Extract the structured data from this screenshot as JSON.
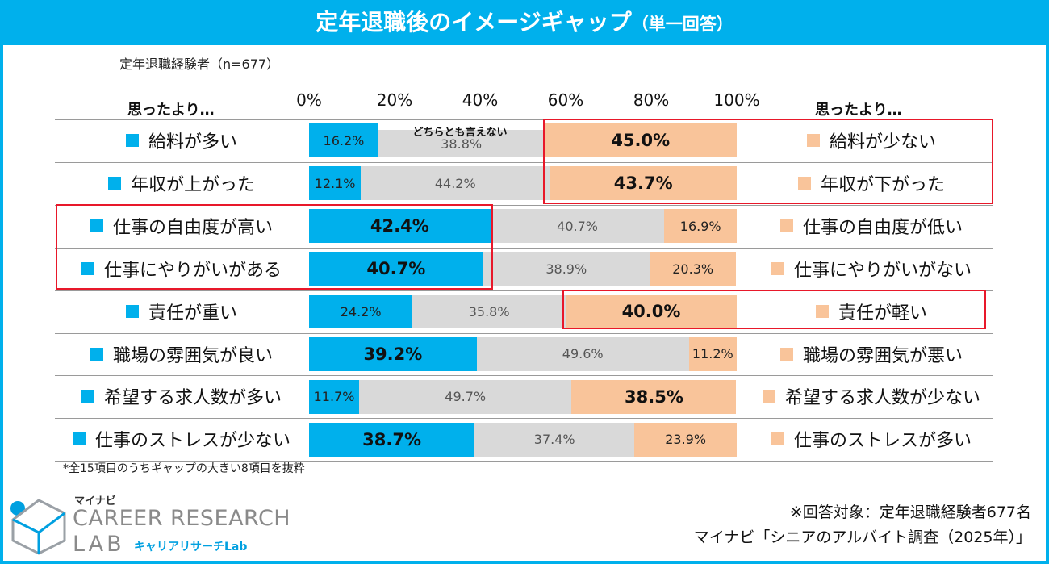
{
  "title": "定年退職後のイメージギャップ",
  "title_suffix": "（単一回答）",
  "sample": "定年退職経験者（n=677）",
  "header_left": "思ったより…",
  "header_right": "思ったより…",
  "neutral_label": "どちらとも言えない",
  "footnote": "*全15項目のうちギャップの大きい8項目を抜粋",
  "logo": {
    "small": "マイナビ",
    "main": "CAREER RESEARCH",
    "lab": "LAB",
    "jp": "キャリアリサーチLab"
  },
  "credit": {
    "line1": "※回答対象：定年退職経験者677名",
    "line2": "マイナビ「シニアのアルバイト調査（2025年）」"
  },
  "colors": {
    "positive": "#00b0ec",
    "neutral": "#d9d9d9",
    "negative": "#f9c49a",
    "highlight": "#e8182a",
    "frame": "#00b0ec"
  },
  "chart_data": {
    "type": "bar",
    "orientation": "horizontal",
    "stacked": true,
    "xlim": [
      0,
      100
    ],
    "x_ticks": [
      "0%",
      "20%",
      "40%",
      "60%",
      "80%",
      "100%"
    ],
    "categories_left": [
      "給料が多い",
      "年収が上がった",
      "仕事の自由度が高い",
      "仕事にやりがいがある",
      "責任が重い",
      "職場の雰囲気が良い",
      "希望する求人数が多い",
      "仕事のストレスが少ない"
    ],
    "categories_right": [
      "給料が少ない",
      "年収が下がった",
      "仕事の自由度が低い",
      "仕事にやりがいがない",
      "責任が軽い",
      "職場の雰囲気が悪い",
      "希望する求人数が少ない",
      "仕事のストレスが多い"
    ],
    "series": [
      {
        "name": "positive",
        "values": [
          16.2,
          12.1,
          42.4,
          40.7,
          24.2,
          39.2,
          11.7,
          38.7
        ]
      },
      {
        "name": "どちらとも言えない",
        "values": [
          38.8,
          44.2,
          40.7,
          38.9,
          35.8,
          49.6,
          49.7,
          37.4
        ]
      },
      {
        "name": "negative",
        "values": [
          45.0,
          43.7,
          16.9,
          20.3,
          40.0,
          11.2,
          38.5,
          23.9
        ]
      }
    ],
    "value_labels": [
      [
        "16.2%",
        "38.8%",
        "45.0%"
      ],
      [
        "12.1%",
        "44.2%",
        "43.7%"
      ],
      [
        "42.4%",
        "40.7%",
        "16.9%"
      ],
      [
        "40.7%",
        "38.9%",
        "20.3%"
      ],
      [
        "24.2%",
        "35.8%",
        "40.0%"
      ],
      [
        "39.2%",
        "49.6%",
        "11.2%"
      ],
      [
        "11.7%",
        "49.7%",
        "38.5%"
      ],
      [
        "38.7%",
        "37.4%",
        "23.9%"
      ]
    ],
    "emphasized_values": [
      [
        false,
        false,
        true
      ],
      [
        false,
        false,
        true
      ],
      [
        true,
        false,
        false
      ],
      [
        true,
        false,
        false
      ],
      [
        false,
        false,
        true
      ],
      [
        true,
        false,
        false
      ],
      [
        false,
        false,
        true
      ],
      [
        true,
        false,
        false
      ]
    ]
  }
}
